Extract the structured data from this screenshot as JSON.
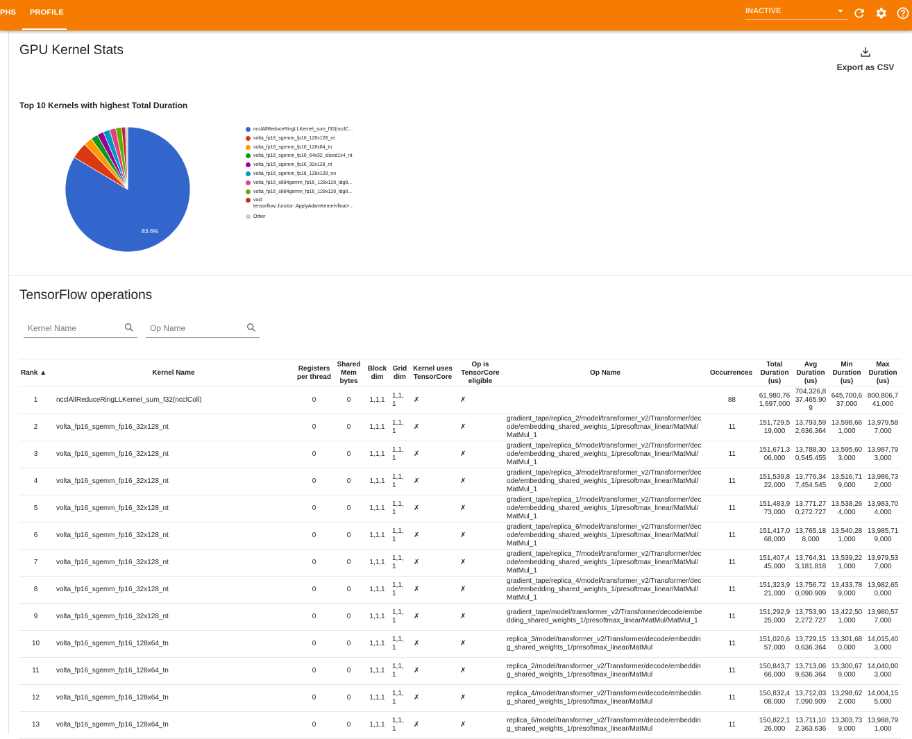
{
  "topbar": {
    "tabs": [
      {
        "label": "PHS"
      },
      {
        "label": "PROFILE",
        "active": true
      }
    ],
    "run_select": "INACTIVE",
    "icons": [
      "refresh-icon",
      "settings-icon",
      "help-icon"
    ],
    "color": "#f57c00"
  },
  "stats": {
    "title": "GPU Kernel Stats",
    "export_label": "Export as CSV"
  },
  "chart_data": {
    "type": "pie",
    "title": "Top 10 Kernels with highest Total Duration",
    "legend_position": "right",
    "slices": [
      {
        "name": "ncclAllReduceRingLLKernel_sum_f32(ncclC...",
        "value": 83.6,
        "color": "#3366cc",
        "label": "83.6%"
      },
      {
        "name": "volta_fp16_sgemm_fp16_128x128_nt",
        "value": 4.3,
        "color": "#dc3912"
      },
      {
        "name": "volta_fp16_sgemm_fp16_128x64_tn",
        "value": 2.2,
        "color": "#ff9900"
      },
      {
        "name": "volta_fp16_sgemm_fp16_64x32_sliced1x4_nt",
        "value": 1.8,
        "color": "#109618"
      },
      {
        "name": "volta_fp16_sgemm_fp16_32x128_nt",
        "value": 1.7,
        "color": "#990099"
      },
      {
        "name": "volta_fp16_sgemm_fp16_128x128_nn",
        "value": 1.7,
        "color": "#0099c6"
      },
      {
        "name": "volta_fp16_s884gemm_fp16_128x128_ldg8...",
        "value": 1.6,
        "color": "#dd4477"
      },
      {
        "name": "volta_fp16_s884gemm_fp16_128x128_ldg8...",
        "value": 1.5,
        "color": "#66aa00"
      },
      {
        "name": "void tensorflow::functor::ApplyAdamKernel<float>...",
        "name_lines": [
          "void",
          "tensorflow::functor::ApplyAdamKernel<float>..."
        ],
        "value": 1.0,
        "color": "#b82e2e"
      },
      {
        "name": "Other",
        "value": 0.6,
        "color": "#cccccc"
      }
    ]
  },
  "ops": {
    "title": "TensorFlow operations",
    "kernel_search_placeholder": "Kernel Name",
    "op_search_placeholder": "Op Name",
    "columns": [
      "Rank ▲",
      "Kernel Name",
      "Registers per thread",
      "Shared Mem bytes",
      "Block dim",
      "Grid dim",
      "Kernel uses TensorCore",
      "Op is TensorCore eligible",
      "Op Name",
      "Occurrences",
      "Total Duration (us)",
      "Avg Duration (us)",
      "Min Duration (us)",
      "Max Duration (us)"
    ],
    "rows": [
      [
        "1",
        "ncclAllReduceRingLLKernel_sum_f32(ncclColl)",
        "0",
        "0",
        "1,1,1",
        "1,1, 1",
        "✗",
        "✗",
        "",
        "88",
        "61,980,761,697,000",
        "704,326,837,465.909",
        "645,700,637,000",
        "800,806,741,000"
      ],
      [
        "2",
        "volta_fp16_sgemm_fp16_32x128_nt",
        "0",
        "0",
        "1,1,1",
        "1,1, 1",
        "✗",
        "✗",
        "gradient_tape/replica_2/model/transformer_v2/Transformer/decode/embedding_shared_weights_1/presoftmax_linear/MatMul/MatMul_1",
        "11",
        "151,729,519,000",
        "13,793,592,636.364",
        "13,598,661,000",
        "13,979,587,000"
      ],
      [
        "3",
        "volta_fp16_sgemm_fp16_32x128_nt",
        "0",
        "0",
        "1,1,1",
        "1,1, 1",
        "✗",
        "✗",
        "gradient_tape/replica_5/model/transformer_v2/Transformer/decode/embedding_shared_weights_1/presoftmax_linear/MatMul/MatMul_1",
        "11",
        "151,671,306,000",
        "13,788,300,545.455",
        "13,595,603,000",
        "13,987,793,000"
      ],
      [
        "4",
        "volta_fp16_sgemm_fp16_32x128_nt",
        "0",
        "0",
        "1,1,1",
        "1,1, 1",
        "✗",
        "✗",
        "gradient_tape/replica_3/model/transformer_v2/Transformer/decode/embedding_shared_weights_1/presoftmax_linear/MatMul/MatMul_1",
        "11",
        "151,539,822,000",
        "13,776,347,454.545",
        "13,516,719,000",
        "13,986,732,000"
      ],
      [
        "5",
        "volta_fp16_sgemm_fp16_32x128_nt",
        "0",
        "0",
        "1,1,1",
        "1,1, 1",
        "✗",
        "✗",
        "gradient_tape/replica_1/model/transformer_v2/Transformer/decode/embedding_shared_weights_1/presoftmax_linear/MatMul/MatMul_1",
        "11",
        "151,483,973,000",
        "13,771,270,272.727",
        "13,538,264,000",
        "13,983,704,000"
      ],
      [
        "6",
        "volta_fp16_sgemm_fp16_32x128_nt",
        "0",
        "0",
        "1,1,1",
        "1,1, 1",
        "✗",
        "✗",
        "gradient_tape/replica_6/model/transformer_v2/Transformer/decode/embedding_shared_weights_1/presoftmax_linear/MatMul/MatMul_1",
        "11",
        "151,417,068,000",
        "13,765,188,000",
        "13,540,281,000",
        "13,985,719,000"
      ],
      [
        "7",
        "volta_fp16_sgemm_fp16_32x128_nt",
        "0",
        "0",
        "1,1,1",
        "1,1, 1",
        "✗",
        "✗",
        "gradient_tape/replica_7/model/transformer_v2/Transformer/decode/embedding_shared_weights_1/presoftmax_linear/MatMul/MatMul_1",
        "11",
        "151,407,445,000",
        "13,764,313,181.818",
        "13,539,221,000",
        "13,979,537,000"
      ],
      [
        "8",
        "volta_fp16_sgemm_fp16_32x128_nt",
        "0",
        "0",
        "1,1,1",
        "1,1, 1",
        "✗",
        "✗",
        "gradient_tape/replica_4/model/transformer_v2/Transformer/decode/embedding_shared_weights_1/presoftmax_linear/MatMul/MatMul_1",
        "11",
        "151,323,921,000",
        "13,756,720,090.909",
        "13,433,789,000",
        "13,982,650,000"
      ],
      [
        "9",
        "volta_fp16_sgemm_fp16_32x128_nt",
        "0",
        "0",
        "1,1,1",
        "1,1, 1",
        "✗",
        "✗",
        "gradient_tape/model/transformer_v2/Transformer/decode/embedding_shared_weights_1/presoftmax_linear/MatMul/MatMul_1",
        "11",
        "151,292,925,000",
        "13,753,902,272.727",
        "13,422,501,000",
        "13,980,577,000"
      ],
      [
        "10",
        "volta_fp16_sgemm_fp16_128x64_tn",
        "0",
        "0",
        "1,1,1",
        "1,1, 1",
        "✗",
        "✗",
        "replica_3/model/transformer_v2/Transformer/decode/embedding_shared_weights_1/presoftmax_linear/MatMul",
        "11",
        "151,020,657,000",
        "13,729,150,636.364",
        "13,301,680,000",
        "14,015,403,000"
      ],
      [
        "11",
        "volta_fp16_sgemm_fp16_128x64_tn",
        "0",
        "0",
        "1,1,1",
        "1,1, 1",
        "✗",
        "✗",
        "replica_2/model/transformer_v2/Transformer/decode/embedding_shared_weights_1/presoftmax_linear/MatMul",
        "11",
        "150,843,766,000",
        "13,713,069,636.364",
        "13,300,679,000",
        "14,040,003,000"
      ],
      [
        "12",
        "volta_fp16_sgemm_fp16_128x64_tn",
        "0",
        "0",
        "1,1,1",
        "1,1, 1",
        "✗",
        "✗",
        "replica_4/model/transformer_v2/Transformer/decode/embedding_shared_weights_1/presoftmax_linear/MatMul",
        "11",
        "150,832,408,000",
        "13,712,037,090.909",
        "13,298,622,000",
        "14,004,155,000"
      ],
      [
        "13",
        "volta_fp16_sgemm_fp16_128x64_tn",
        "0",
        "0",
        "1,1,1",
        "1,1, 1",
        "✗",
        "✗",
        "replica_6/model/transformer_v2/Transformer/decode/embedding_shared_weights_1/presoftmax_linear/MatMul",
        "11",
        "150,822,126,000",
        "13,711,102,363.636",
        "13,303,739,000",
        "13,988,791,000"
      ]
    ]
  }
}
